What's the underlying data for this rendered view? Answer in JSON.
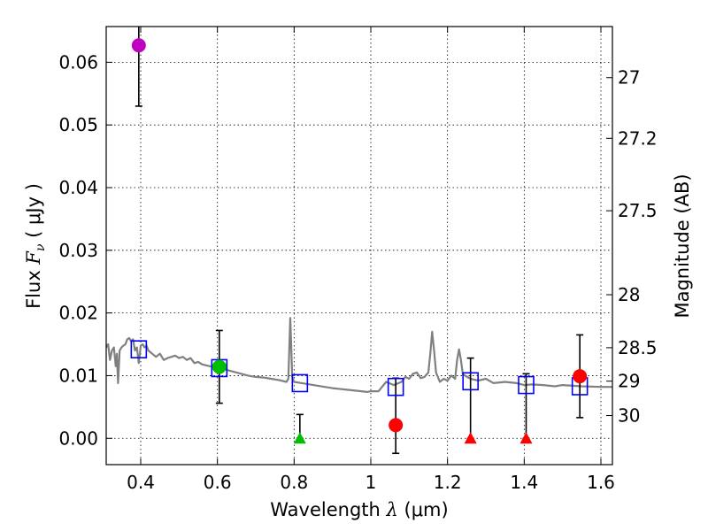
{
  "chart_data": {
    "type": "scatter",
    "xlabel_prefix": "Wavelength  ",
    "xlabel_symbol": "λ",
    "xlabel_unit": " (μm)",
    "ylabel_prefix": "Flux  ",
    "ylabel_symbol": "F",
    "ylabel_sub": "ν",
    "ylabel_unit": "  ( μJy )",
    "y2label": "Magnitude (AB)",
    "xlim": [
      0.31,
      1.63
    ],
    "ylim": [
      -0.0042,
      0.0657
    ],
    "grid": true,
    "x_ticks": [
      0.4,
      0.6,
      0.8,
      1.0,
      1.2,
      1.4,
      1.6
    ],
    "x_tick_labels": [
      "0.4",
      "0.6",
      "0.8",
      "1",
      "1.2",
      "1.4",
      "1.6"
    ],
    "y_ticks": [
      0.0,
      0.01,
      0.02,
      0.03,
      0.04,
      0.05,
      0.06
    ],
    "y_tick_labels": [
      "0.00",
      "0.01",
      "0.02",
      "0.03",
      "0.04",
      "0.05",
      "0.06"
    ],
    "y2_ticks": [
      27,
      27.2,
      27.5,
      28,
      28.5,
      29,
      30
    ],
    "y2_tick_labels": [
      "27",
      "27.2",
      "27.5",
      "28",
      "28.5",
      "29",
      "30"
    ],
    "series": [
      {
        "name": "model-spectrum",
        "kind": "line",
        "color": "#808080",
        "x": [
          0.31,
          0.315,
          0.32,
          0.325,
          0.33,
          0.335,
          0.338,
          0.341,
          0.345,
          0.35,
          0.355,
          0.36,
          0.365,
          0.37,
          0.375,
          0.38,
          0.385,
          0.39,
          0.395,
          0.398,
          0.4,
          0.405,
          0.41,
          0.415,
          0.42,
          0.43,
          0.44,
          0.45,
          0.46,
          0.47,
          0.48,
          0.49,
          0.5,
          0.51,
          0.52,
          0.53,
          0.54,
          0.55,
          0.56,
          0.58,
          0.6,
          0.62,
          0.65,
          0.68,
          0.7,
          0.72,
          0.74,
          0.76,
          0.78,
          0.785,
          0.79,
          0.795,
          0.8,
          0.82,
          0.85,
          0.88,
          0.9,
          0.93,
          0.96,
          0.99,
          1.0,
          1.02,
          1.04,
          1.06,
          1.08,
          1.09,
          1.1,
          1.11,
          1.12,
          1.13,
          1.14,
          1.15,
          1.155,
          1.16,
          1.165,
          1.17,
          1.175,
          1.18,
          1.19,
          1.2,
          1.21,
          1.22,
          1.225,
          1.23,
          1.235,
          1.24,
          1.26,
          1.28,
          1.3,
          1.32,
          1.35,
          1.38,
          1.4,
          1.42,
          1.45,
          1.48,
          1.5,
          1.55,
          1.6,
          1.63
        ],
        "y": [
          0.0145,
          0.015,
          0.0125,
          0.014,
          0.0145,
          0.0115,
          0.0135,
          0.0088,
          0.014,
          0.0145,
          0.0148,
          0.015,
          0.0158,
          0.016,
          0.0155,
          0.0158,
          0.014,
          0.0145,
          0.012,
          0.0135,
          0.0148,
          0.015,
          0.0145,
          0.0148,
          0.014,
          0.0135,
          0.013,
          0.0135,
          0.0125,
          0.0128,
          0.013,
          0.0132,
          0.0128,
          0.013,
          0.0125,
          0.0128,
          0.012,
          0.0122,
          0.0118,
          0.0115,
          0.0113,
          0.011,
          0.0105,
          0.01,
          0.0098,
          0.0097,
          0.0095,
          0.0093,
          0.009,
          0.0095,
          0.0192,
          0.0098,
          0.009,
          0.0088,
          0.0085,
          0.0082,
          0.008,
          0.0078,
          0.0076,
          0.0074,
          0.0075,
          0.0075,
          0.009,
          0.0085,
          0.009,
          0.0098,
          0.0095,
          0.0103,
          0.0105,
          0.0096,
          0.0098,
          0.0105,
          0.0135,
          0.017,
          0.014,
          0.0105,
          0.0098,
          0.009,
          0.0095,
          0.0092,
          0.01,
          0.0095,
          0.0125,
          0.0142,
          0.0125,
          0.0102,
          0.0095,
          0.0092,
          0.0095,
          0.0088,
          0.009,
          0.0088,
          0.0085,
          0.0086,
          0.0085,
          0.0083,
          0.0085,
          0.0083,
          0.0082,
          0.0082
        ]
      },
      {
        "name": "model-photometry",
        "kind": "open-square",
        "color": "#0000ff",
        "x": [
          0.395,
          0.605,
          0.815,
          1.065,
          1.26,
          1.405,
          1.545
        ],
        "y": [
          0.0142,
          0.0112,
          0.0088,
          0.0082,
          0.0091,
          0.0085,
          0.0083
        ]
      },
      {
        "name": "observed-detections",
        "kind": "filled-circle",
        "x": [
          0.395,
          0.605,
          1.065,
          1.545
        ],
        "y": [
          0.0627,
          0.0114,
          0.0021,
          0.0099
        ],
        "yerr_low": [
          0.0097,
          0.0058,
          0.0045,
          0.0066
        ],
        "yerr_high": [
          0.004,
          0.0058,
          0.0075,
          0.0066
        ],
        "colors": [
          "#bf00bf",
          "#00bf00",
          "#ff0000",
          "#ff0000"
        ]
      },
      {
        "name": "observed-upper-limits",
        "kind": "filled-triangle",
        "x": [
          0.815,
          1.26,
          1.405
        ],
        "y": [
          0.0,
          0.0,
          0.0
        ],
        "yerr_high": [
          0.0038,
          0.0128,
          0.0103
        ],
        "colors": [
          "#00bf00",
          "#ff0000",
          "#ff0000"
        ]
      }
    ]
  }
}
